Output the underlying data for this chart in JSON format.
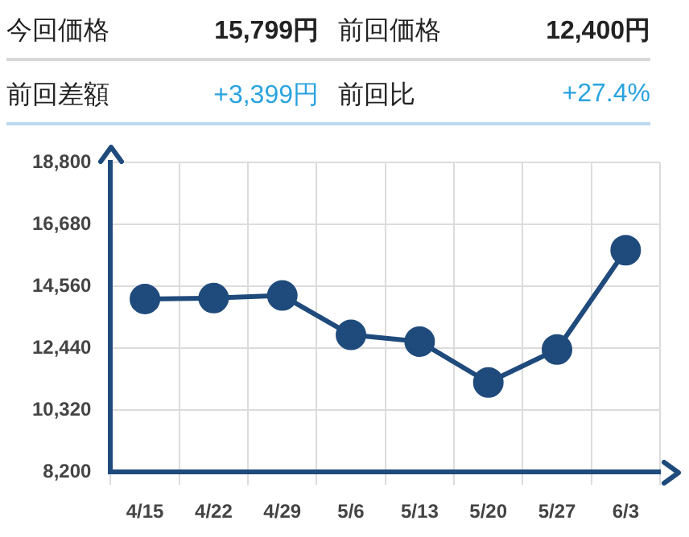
{
  "chart_data": [
    {
      "type": "other",
      "annotations": [
        "今回価格",
        "15,799円",
        "前回価格",
        "12,400円",
        "前回差額",
        "+3,399円",
        "前回比",
        "+27.4%"
      ]
    },
    {
      "type": "line",
      "categories": [
        "4/15",
        "4/22",
        "4/29",
        "5/6",
        "5/13",
        "5/20",
        "5/27",
        "6/3"
      ],
      "series": [
        {
          "color": "#1f4a7c",
          "values": [
            14130,
            14160,
            14250,
            12900,
            12670,
            11270,
            12400,
            15800
          ]
        }
      ],
      "ylim": [
        8200,
        18800
      ],
      "yticks": [
        {
          "value": 8200,
          "label": "8,200"
        },
        {
          "value": 10320,
          "label": "10,320"
        },
        {
          "value": 12440,
          "label": "12,440"
        },
        {
          "value": 14560,
          "label": "14,560"
        },
        {
          "value": 16680,
          "label": "16,680"
        },
        {
          "value": 18800,
          "label": "18,800"
        }
      ],
      "grid": true,
      "marker": "circle",
      "line_style": "solid",
      "legend": false
    }
  ]
}
